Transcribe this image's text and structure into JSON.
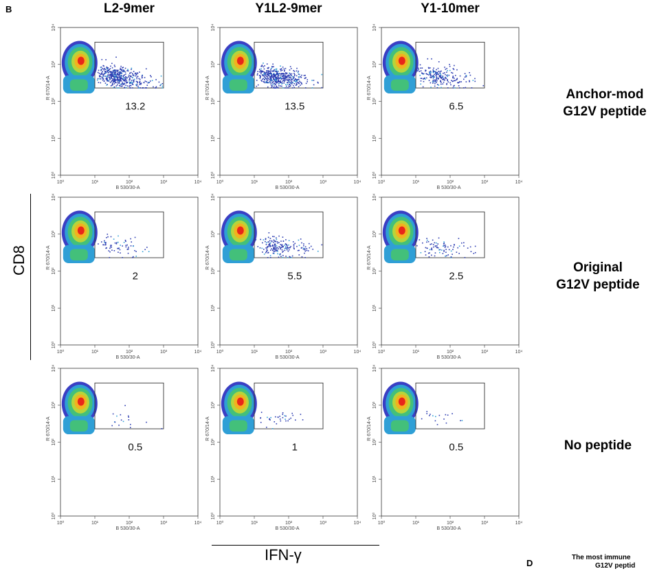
{
  "panel_letter": "B",
  "panel_letter_d": "D",
  "footnote_line1": "The most immune",
  "footnote_line2": "G12V peptid",
  "axis_labels": {
    "y_common": "CD8",
    "x_common": "IFN-γ",
    "y_instrument": "R 670/14-A",
    "x_instrument": "B 530/30-A"
  },
  "columns": [
    "L2-9mer",
    "Y1L2-9mer",
    "Y1-10mer"
  ],
  "rows": [
    {
      "line1": "Anchor-mod",
      "line2": "G12V peptide"
    },
    {
      "line1": "Original",
      "line2": "G12V peptide"
    },
    {
      "line1": "No peptide",
      "line2": ""
    }
  ],
  "chart_data": {
    "type": "scatter",
    "plot_type": "flow cytometry density dot plots",
    "xlabel": "B 530/30-A",
    "ylabel": "R 670/14-A",
    "x_scale": "log",
    "y_scale": "log",
    "xlim": [
      1,
      10000
    ],
    "ylim": [
      1,
      10000
    ],
    "tick_labels": [
      "10⁰",
      "10¹",
      "10²",
      "10³",
      "10⁴"
    ],
    "gate": {
      "x_range": [
        10,
        1000
      ],
      "y_range": [
        230,
        4000
      ]
    },
    "panels": [
      {
        "column": "L2-9mer",
        "row": "Anchor-mod G12V peptide",
        "gate_percent": "13.2"
      },
      {
        "column": "Y1L2-9mer",
        "row": "Anchor-mod G12V peptide",
        "gate_percent": "13.5"
      },
      {
        "column": "Y1-10mer",
        "row": "Anchor-mod G12V peptide",
        "gate_percent": "6.5"
      },
      {
        "column": "L2-9mer",
        "row": "Original G12V peptide",
        "gate_percent": "2"
      },
      {
        "column": "Y1L2-9mer",
        "row": "Original G12V peptide",
        "gate_percent": "5.5"
      },
      {
        "column": "Y1-10mer",
        "row": "Original G12V peptide",
        "gate_percent": "2.5"
      },
      {
        "column": "L2-9mer",
        "row": "No peptide",
        "gate_percent": "0.5"
      },
      {
        "column": "Y1L2-9mer",
        "row": "No peptide",
        "gate_percent": "1"
      },
      {
        "column": "Y1-10mer",
        "row": "No peptide",
        "gate_percent": "0.5"
      }
    ]
  }
}
